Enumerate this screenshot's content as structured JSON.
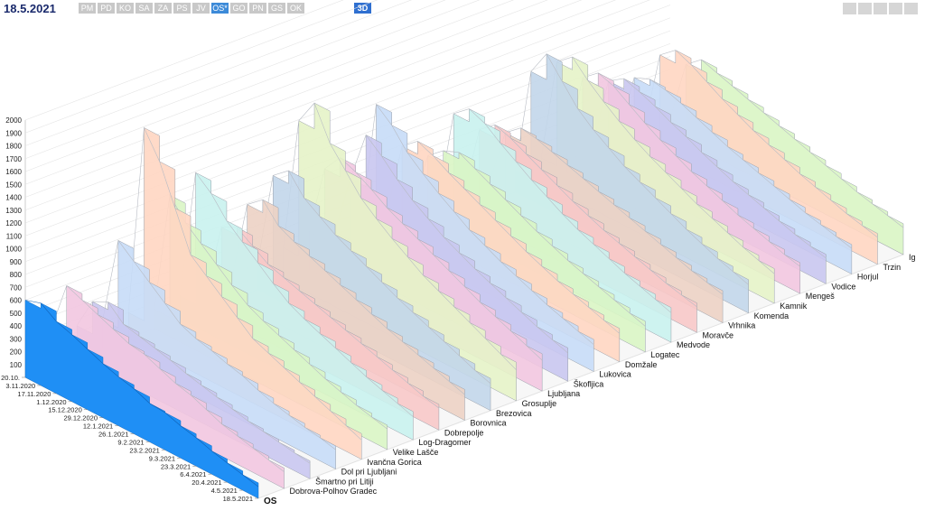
{
  "header": {
    "date": "18.5.2021",
    "regions": [
      "PM",
      "PD",
      "KO",
      "SA",
      "ZA",
      "PS",
      "JV",
      "OS*",
      "GO",
      "PN",
      "GS",
      "OK"
    ],
    "active_region": "OS*",
    "view_3d_label": "3D"
  },
  "colors": {
    "os_series": "#1f8ff5",
    "series_palette": [
      "#f2c6e0",
      "#c9c6f0",
      "#c7dcf7",
      "#ffd6c2",
      "#d9f5c4",
      "#c9f2ee",
      "#f7c8c8",
      "#ecd2c4",
      "#c2d6ea",
      "#e6f3c8"
    ]
  },
  "chart_data": {
    "type": "area",
    "title": "",
    "z_axis_ticks": [
      "100",
      "200",
      "300",
      "400",
      "500",
      "600",
      "700",
      "800",
      "900",
      "1000",
      "1100",
      "1200",
      "1300",
      "1400",
      "1500",
      "1600",
      "1700",
      "1800",
      "1900",
      "2000"
    ],
    "ylim": [
      0,
      2000
    ],
    "date_ticks": [
      "20.10.",
      "3.11.2020",
      "17.11.2020",
      "1.12.2020",
      "15.12.2020",
      "29.12.2020",
      "12.1.2021",
      "26.1.2021",
      "9.2.2021",
      "23.2.2021",
      "9.3.2021",
      "23.3.2021",
      "6.4.2021",
      "20.4.2021",
      "4.5.2021",
      "18.5.2021"
    ],
    "series": [
      {
        "name": "OS",
        "values": [
          600,
          640,
          560,
          520,
          470,
          420,
          380,
          350,
          300,
          290,
          250,
          220,
          180,
          150,
          120,
          90
        ]
      },
      {
        "name": "Dobrova-Polhov Gradec",
        "values": [
          300,
          700,
          650,
          600,
          550,
          500,
          480,
          430,
          380,
          350,
          300,
          250,
          220,
          190,
          160,
          130
        ]
      },
      {
        "name": "Šmartno pri Litiji",
        "values": [
          250,
          500,
          560,
          450,
          420,
          390,
          360,
          320,
          290,
          260,
          230,
          200,
          180,
          160,
          140,
          120
        ]
      },
      {
        "name": "Dol pri Ljubljani",
        "values": [
          220,
          900,
          800,
          700,
          600,
          500,
          450,
          420,
          380,
          350,
          300,
          260,
          230,
          200,
          180,
          150
        ]
      },
      {
        "name": "Ivančna Gorica",
        "values": [
          200,
          1700,
          1500,
          1200,
          900,
          800,
          700,
          600,
          500,
          450,
          400,
          350,
          300,
          250,
          200,
          150
        ]
      },
      {
        "name": "Velike Lašče",
        "values": [
          150,
          1100,
          950,
          850,
          750,
          650,
          560,
          500,
          450,
          400,
          350,
          300,
          260,
          220,
          190,
          160
        ]
      },
      {
        "name": "Log-Dragomer",
        "values": [
          180,
          1200,
          1100,
          950,
          850,
          750,
          650,
          560,
          500,
          450,
          400,
          350,
          300,
          260,
          220,
          180
        ]
      },
      {
        "name": "Dobrepolje",
        "values": [
          130,
          700,
          760,
          680,
          600,
          560,
          520,
          480,
          440,
          400,
          360,
          320,
          280,
          240,
          200,
          170
        ]
      },
      {
        "name": "Borovnica",
        "values": [
          160,
          800,
          900,
          760,
          700,
          650,
          600,
          550,
          500,
          450,
          400,
          360,
          320,
          280,
          240,
          200
        ]
      },
      {
        "name": "Brezovica",
        "values": [
          200,
          950,
          1050,
          900,
          820,
          740,
          680,
          620,
          560,
          500,
          450,
          400,
          350,
          300,
          250,
          210
        ]
      },
      {
        "name": "Grosuplje",
        "values": [
          250,
          1300,
          1500,
          1250,
          1100,
          950,
          850,
          760,
          680,
          600,
          540,
          480,
          420,
          360,
          300,
          240
        ]
      },
      {
        "name": "Ljubljana",
        "values": [
          300,
          850,
          1000,
          950,
          880,
          800,
          740,
          680,
          620,
          560,
          500,
          440,
          390,
          340,
          290,
          240
        ]
      },
      {
        "name": "Škofljica",
        "values": [
          220,
          700,
          1100,
          1000,
          880,
          780,
          700,
          620,
          560,
          500,
          450,
          400,
          350,
          300,
          260,
          220
        ]
      },
      {
        "name": "Lukovica",
        "values": [
          180,
          1200,
          1100,
          950,
          850,
          760,
          680,
          600,
          540,
          480,
          430,
          380,
          330,
          290,
          250,
          210
        ]
      },
      {
        "name": "Domžale",
        "values": [
          200,
          800,
          900,
          850,
          780,
          720,
          660,
          600,
          540,
          480,
          430,
          380,
          340,
          300,
          260,
          220
        ]
      },
      {
        "name": "Logatec",
        "values": [
          170,
          650,
          750,
          800,
          740,
          680,
          620,
          560,
          500,
          450,
          400,
          360,
          320,
          280,
          240,
          200
        ]
      },
      {
        "name": "Medvode",
        "values": [
          150,
          900,
          1000,
          950,
          860,
          780,
          700,
          630,
          560,
          500,
          450,
          400,
          350,
          310,
          270,
          230
        ]
      },
      {
        "name": "Moravče",
        "values": [
          140,
          700,
          800,
          760,
          700,
          640,
          580,
          520,
          470,
          420,
          380,
          340,
          300,
          260,
          230,
          200
        ]
      },
      {
        "name": "Vrhnika",
        "values": [
          160,
          600,
          700,
          680,
          640,
          600,
          560,
          520,
          480,
          440,
          400,
          360,
          320,
          280,
          250,
          220
        ]
      },
      {
        "name": "Komenda",
        "values": [
          170,
          1000,
          1200,
          1050,
          900,
          800,
          720,
          640,
          580,
          520,
          460,
          400,
          350,
          300,
          260,
          220
        ]
      },
      {
        "name": "Kamnik",
        "values": [
          190,
          1000,
          1100,
          980,
          880,
          790,
          710,
          640,
          580,
          520,
          460,
          410,
          360,
          310,
          270,
          230
        ]
      },
      {
        "name": "Mengeš",
        "values": [
          160,
          800,
          900,
          860,
          780,
          700,
          630,
          570,
          510,
          460,
          410,
          360,
          320,
          280,
          240,
          210
        ]
      },
      {
        "name": "Vodice",
        "values": [
          140,
          700,
          780,
          740,
          690,
          630,
          580,
          520,
          470,
          420,
          380,
          340,
          300,
          260,
          230,
          200
        ]
      },
      {
        "name": "Horjul",
        "values": [
          150,
          650,
          700,
          680,
          640,
          590,
          540,
          490,
          450,
          410,
          370,
          330,
          290,
          260,
          230,
          200
        ]
      },
      {
        "name": "Trzin",
        "values": [
          130,
          750,
          850,
          800,
          730,
          660,
          600,
          540,
          490,
          440,
          390,
          350,
          310,
          270,
          240,
          210
        ]
      },
      {
        "name": "Ig",
        "values": [
          120,
          600,
          700,
          660,
          620,
          580,
          540,
          500,
          460,
          420,
          380,
          340,
          300,
          270,
          240,
          210
        ]
      }
    ]
  }
}
